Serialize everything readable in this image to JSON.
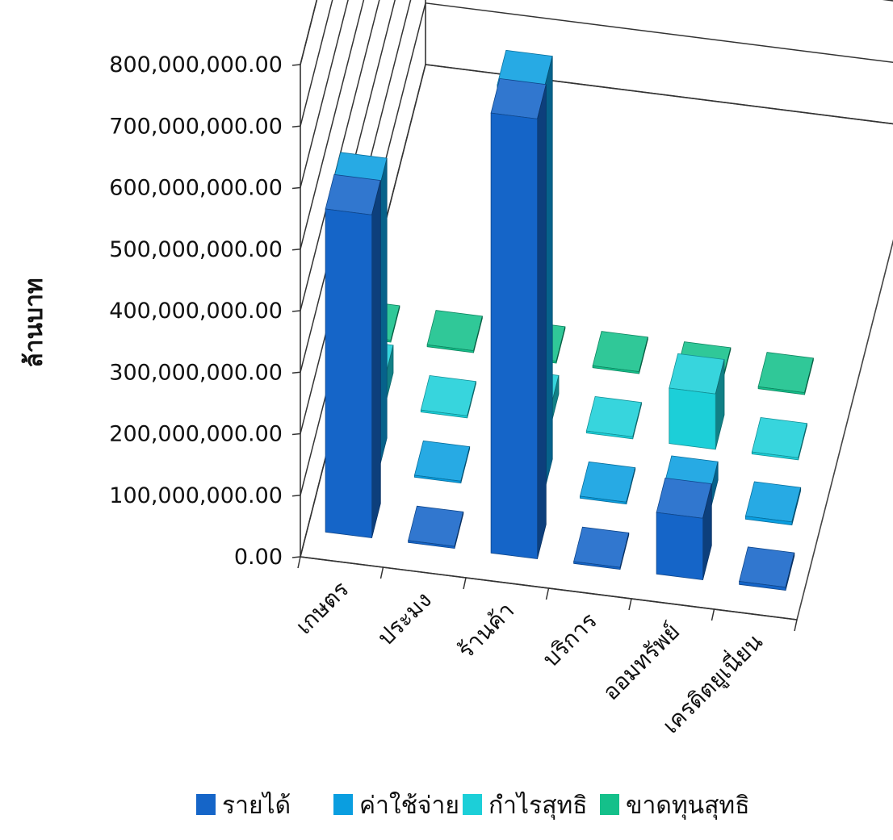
{
  "chart_data": {
    "type": "bar",
    "style": "3d-clustered-column",
    "title": "",
    "ylabel": "ล้านบาท",
    "xlabel": "",
    "ylim": [
      0,
      800000000
    ],
    "yticks": [
      0,
      100000000,
      200000000,
      300000000,
      400000000,
      500000000,
      600000000,
      700000000,
      800000000
    ],
    "ytick_labels": [
      "0.00",
      "100,000,000.00",
      "200,000,000.00",
      "300,000,000.00",
      "400,000,000.00",
      "500,000,000.00",
      "600,000,000.00",
      "700,000,000.00",
      "800,000,000.00"
    ],
    "categories": [
      "เกษตร",
      "ประมง",
      "ร้านค้า",
      "บริการ",
      "ออมทรัพย์",
      "เครดิตยูเนี่ยน"
    ],
    "series": [
      {
        "name": "รายได้",
        "color": "#1565c8",
        "values": [
          525000000,
          1500000,
          715000000,
          2000000,
          100000000,
          5000000
        ]
      },
      {
        "name": "ค่าใช้จ่าย",
        "color": "#0a9ee0",
        "values": [
          455000000,
          1500000,
          655000000,
          2000000,
          30000000,
          5000000
        ]
      },
      {
        "name": "กำไรสุทธิ",
        "color": "#1ccfd8",
        "values": [
          45000000,
          500000,
          30000000,
          500000,
          90000000,
          3000000
        ]
      },
      {
        "name": "ขาดทุนสุทธิ",
        "color": "#14c08a",
        "values": [
          200000,
          100000,
          300000,
          100000,
          200000,
          100000
        ]
      }
    ],
    "grid": true,
    "legend_position": "bottom"
  }
}
